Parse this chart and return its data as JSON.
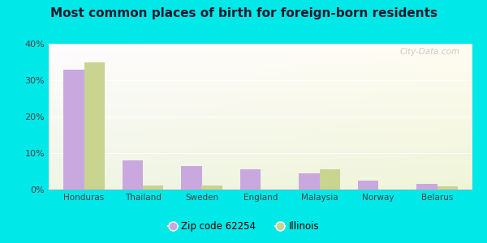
{
  "title": "Most common places of birth for foreign-born residents",
  "categories": [
    "Honduras",
    "Thailand",
    "Sweden",
    "England",
    "Malaysia",
    "Norway",
    "Belarus"
  ],
  "zip_values": [
    33,
    8,
    6.5,
    5.5,
    4.5,
    2.5,
    1.5
  ],
  "illinois_values": [
    35,
    1.2,
    1.2,
    0,
    5.5,
    0,
    0.8
  ],
  "zip_color": "#c9a8e0",
  "illinois_color": "#c8d490",
  "bar_width": 0.35,
  "ylim": [
    0,
    40
  ],
  "yticks": [
    0,
    10,
    20,
    30,
    40
  ],
  "ytick_labels": [
    "0%",
    "10%",
    "20%",
    "30%",
    "40%"
  ],
  "bg_outer": "#00e8e8",
  "legend_zip_label": "Zip code 62254",
  "legend_illinois_label": "Illinois",
  "watermark": "City-Data.com",
  "title_color": "#1a1a2e",
  "xlabel_color": "#555555",
  "ylabel_color": "#555555"
}
